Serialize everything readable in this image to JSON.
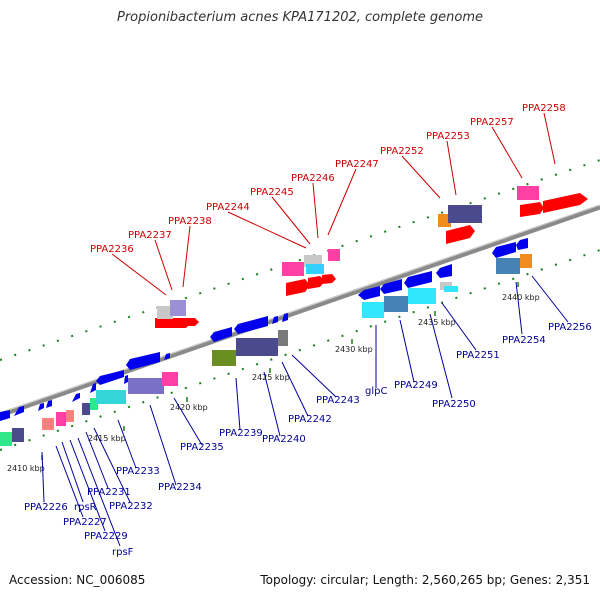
{
  "header": {
    "title": "Propionibacterium acnes KPA171202, complete genome"
  },
  "footer": {
    "accession": "Accession: NC_006085",
    "summary": "Topology: circular; Length: 2,560,265 bp; Genes: 2,351"
  },
  "scale_labels": [
    "2410 kbp",
    "2415 kbp",
    "2420 kbp",
    "2425 kbp",
    "2430 kbp",
    "2435 kbp",
    "2440 kbp"
  ],
  "top_labels": [
    "PPA2236",
    "PPA2237",
    "PPA2238",
    "PPA2244",
    "PPA2245",
    "PPA2246",
    "PPA2247",
    "PPA2252",
    "PPA2253",
    "PPA2257",
    "PPA2258"
  ],
  "bottom_labels": [
    "PPA2226",
    "PPA2227",
    "rpsR",
    "PPA2229",
    "rpsF",
    "PPA2231",
    "PPA2232",
    "PPA2233",
    "PPA2234",
    "PPA2235",
    "PPA2239",
    "PPA2240",
    "PPA2242",
    "PPA2243",
    "glpC",
    "PPA2249",
    "PPA2250",
    "PPA2251",
    "PPA2254",
    "PPA2256"
  ],
  "colors": {
    "top_label": "#cc0000",
    "bottom_label": "#000099",
    "backbone": "#8a8a8a",
    "tick": "#1a7f1a"
  }
}
